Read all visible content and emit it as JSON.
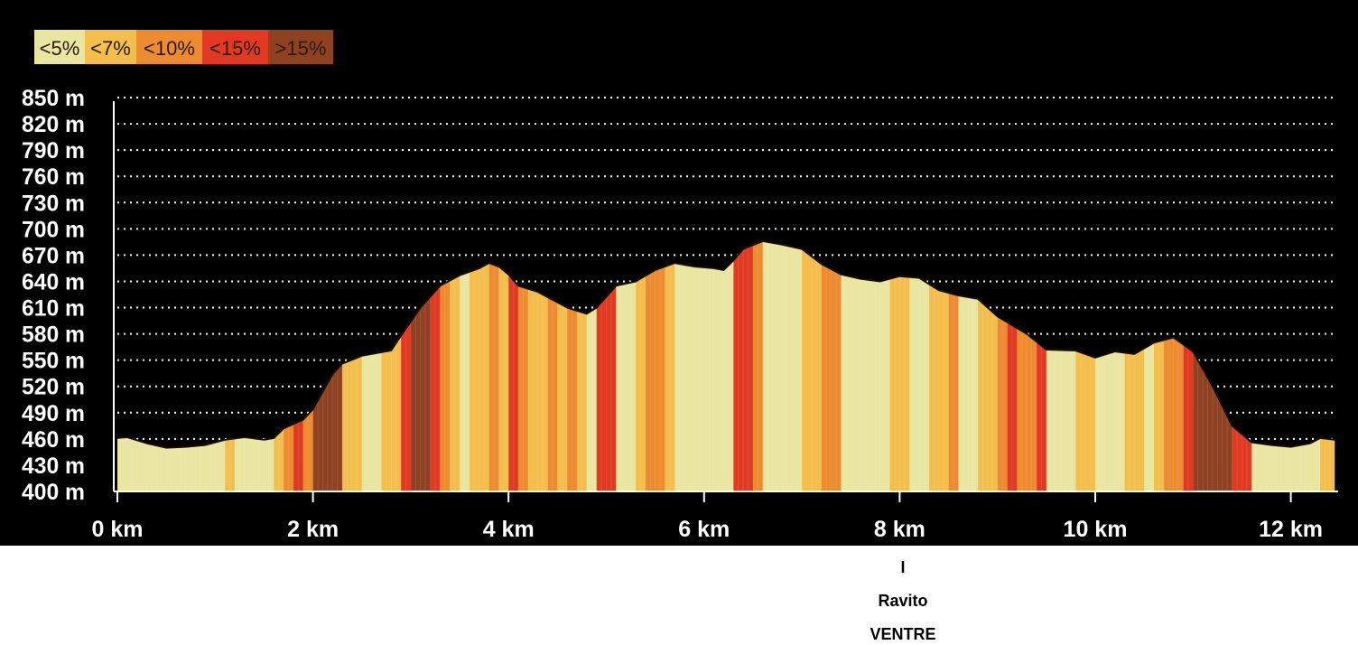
{
  "chart_data": {
    "type": "area",
    "title": "",
    "xlabel": "",
    "ylabel": "",
    "xlim": [
      0,
      12.5
    ],
    "ylim": [
      400,
      850
    ],
    "x_unit": "km",
    "y_unit": "m",
    "x_ticks": [
      "0 km",
      "2 km",
      "4 km",
      "6 km",
      "8 km",
      "10 km",
      "12 km"
    ],
    "y_ticks": [
      "850 m",
      "820 m",
      "790 m",
      "760 m",
      "730 m",
      "700 m",
      "670 m",
      "640 m",
      "610 m",
      "580 m",
      "550 m",
      "520 m",
      "490 m",
      "460 m",
      "430 m",
      "400 m"
    ],
    "grid": true,
    "legend": {
      "position": "top-left",
      "items": [
        {
          "label": "<5%",
          "color": "#e8e6a0"
        },
        {
          "label": "<7%",
          "color": "#f3be4c"
        },
        {
          "label": "<10%",
          "color": "#ee8a30"
        },
        {
          "label": "<15%",
          "color": "#e23a22"
        },
        {
          "label": ">15%",
          "color": "#8e4222"
        }
      ]
    },
    "profile": [
      [
        0.0,
        461
      ],
      [
        0.1,
        462
      ],
      [
        0.3,
        455
      ],
      [
        0.5,
        450
      ],
      [
        0.7,
        451
      ],
      [
        0.9,
        453
      ],
      [
        1.1,
        459
      ],
      [
        1.3,
        462
      ],
      [
        1.5,
        459
      ],
      [
        1.6,
        461
      ],
      [
        1.7,
        472
      ],
      [
        1.9,
        482
      ],
      [
        2.0,
        494
      ],
      [
        2.2,
        534
      ],
      [
        2.3,
        546
      ],
      [
        2.5,
        555
      ],
      [
        2.7,
        559
      ],
      [
        2.8,
        561
      ],
      [
        2.9,
        578
      ],
      [
        3.1,
        610
      ],
      [
        3.3,
        635
      ],
      [
        3.5,
        647
      ],
      [
        3.7,
        655
      ],
      [
        3.8,
        661
      ],
      [
        3.9,
        657
      ],
      [
        4.0,
        648
      ],
      [
        4.1,
        635
      ],
      [
        4.3,
        628
      ],
      [
        4.6,
        610
      ],
      [
        4.8,
        603
      ],
      [
        4.9,
        610
      ],
      [
        5.1,
        635
      ],
      [
        5.3,
        640
      ],
      [
        5.5,
        653
      ],
      [
        5.7,
        661
      ],
      [
        5.9,
        657
      ],
      [
        6.1,
        655
      ],
      [
        6.2,
        653
      ],
      [
        6.3,
        664
      ],
      [
        6.4,
        677
      ],
      [
        6.6,
        686
      ],
      [
        6.8,
        682
      ],
      [
        7.0,
        677
      ],
      [
        7.2,
        660
      ],
      [
        7.4,
        648
      ],
      [
        7.6,
        643
      ],
      [
        7.8,
        640
      ],
      [
        8.0,
        646
      ],
      [
        8.2,
        644
      ],
      [
        8.4,
        630
      ],
      [
        8.6,
        624
      ],
      [
        8.8,
        620
      ],
      [
        9.0,
        600
      ],
      [
        9.3,
        580
      ],
      [
        9.5,
        562
      ],
      [
        9.8,
        561
      ],
      [
        10.0,
        553
      ],
      [
        10.2,
        560
      ],
      [
        10.4,
        557
      ],
      [
        10.6,
        570
      ],
      [
        10.8,
        576
      ],
      [
        11.0,
        560
      ],
      [
        11.2,
        520
      ],
      [
        11.4,
        475
      ],
      [
        11.6,
        456
      ],
      [
        11.8,
        453
      ],
      [
        12.0,
        451
      ],
      [
        12.2,
        455
      ],
      [
        12.3,
        461
      ],
      [
        12.45,
        459
      ]
    ],
    "segments": [
      [
        0.0,
        1.1,
        0
      ],
      [
        1.1,
        1.2,
        1
      ],
      [
        1.2,
        1.6,
        0
      ],
      [
        1.6,
        1.7,
        1
      ],
      [
        1.7,
        1.8,
        2
      ],
      [
        1.8,
        1.9,
        3
      ],
      [
        1.9,
        2.0,
        2
      ],
      [
        2.0,
        2.3,
        4
      ],
      [
        2.3,
        2.5,
        1
      ],
      [
        2.5,
        2.7,
        0
      ],
      [
        2.7,
        2.9,
        1
      ],
      [
        2.9,
        3.0,
        3
      ],
      [
        3.0,
        3.2,
        4
      ],
      [
        3.2,
        3.3,
        3
      ],
      [
        3.3,
        3.4,
        2
      ],
      [
        3.4,
        3.5,
        1
      ],
      [
        3.5,
        3.6,
        0
      ],
      [
        3.6,
        3.8,
        1
      ],
      [
        3.8,
        3.9,
        2
      ],
      [
        3.9,
        4.0,
        1
      ],
      [
        4.0,
        4.1,
        3
      ],
      [
        4.1,
        4.2,
        2
      ],
      [
        4.2,
        4.4,
        1
      ],
      [
        4.4,
        4.5,
        2
      ],
      [
        4.5,
        4.6,
        1
      ],
      [
        4.6,
        4.7,
        2
      ],
      [
        4.7,
        4.8,
        1
      ],
      [
        4.8,
        4.9,
        0
      ],
      [
        4.9,
        5.1,
        3
      ],
      [
        5.1,
        5.3,
        0
      ],
      [
        5.3,
        5.4,
        1
      ],
      [
        5.4,
        5.6,
        2
      ],
      [
        5.6,
        5.7,
        1
      ],
      [
        5.7,
        6.3,
        0
      ],
      [
        6.3,
        6.5,
        3
      ],
      [
        6.5,
        6.6,
        2
      ],
      [
        6.6,
        7.0,
        0
      ],
      [
        7.0,
        7.2,
        1
      ],
      [
        7.2,
        7.4,
        2
      ],
      [
        7.4,
        7.6,
        0
      ],
      [
        7.6,
        7.9,
        0
      ],
      [
        7.9,
        8.1,
        1
      ],
      [
        8.1,
        8.3,
        0
      ],
      [
        8.3,
        8.5,
        1
      ],
      [
        8.5,
        8.6,
        2
      ],
      [
        8.6,
        8.8,
        0
      ],
      [
        8.8,
        9.0,
        1
      ],
      [
        9.0,
        9.1,
        2
      ],
      [
        9.1,
        9.2,
        3
      ],
      [
        9.2,
        9.4,
        2
      ],
      [
        9.4,
        9.5,
        3
      ],
      [
        9.5,
        9.8,
        0
      ],
      [
        9.8,
        10.0,
        1
      ],
      [
        10.0,
        10.3,
        0
      ],
      [
        10.3,
        10.5,
        1
      ],
      [
        10.5,
        10.6,
        0
      ],
      [
        10.6,
        10.7,
        1
      ],
      [
        10.7,
        10.9,
        2
      ],
      [
        10.9,
        11.0,
        3
      ],
      [
        11.0,
        11.4,
        4
      ],
      [
        11.4,
        11.6,
        3
      ],
      [
        11.6,
        12.3,
        0
      ],
      [
        12.3,
        12.45,
        1
      ]
    ]
  },
  "annotation": {
    "marker": "I",
    "line1": "Ravito",
    "line2": "VENTRE"
  }
}
